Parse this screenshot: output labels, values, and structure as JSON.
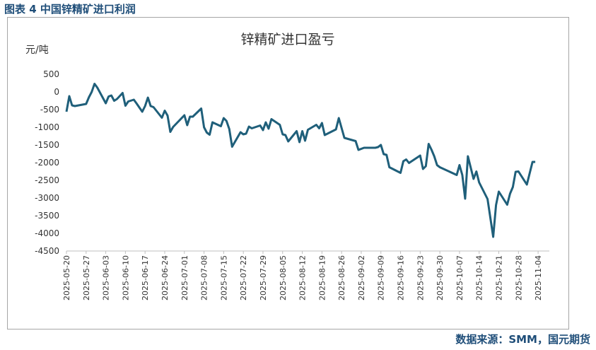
{
  "caption": "图表 4 中国锌精矿进口利润",
  "source": "数据来源：SMM，国元期货",
  "chart_data": {
    "type": "line",
    "title": "锌精矿进口盈亏",
    "ylabel": "元/吨",
    "ylim": [
      -4500,
      500
    ],
    "yticks": [
      500,
      0,
      -500,
      -1000,
      -1500,
      -2000,
      -2500,
      -3000,
      -3500,
      -4000,
      -4500
    ],
    "xticks": [
      "2025-05-20",
      "2025-05-27",
      "2025-06-03",
      "2025-06-10",
      "2025-06-17",
      "2025-06-24",
      "2025-07-01",
      "2025-07-08",
      "2025-07-15",
      "2025-07-22",
      "2025-07-29",
      "2025-08-05",
      "2025-08-12",
      "2025-08-19",
      "2025-08-26",
      "2025-09-02",
      "2025-09-09",
      "2025-09-16",
      "2025-09-23",
      "2025-09-30",
      "2025-10-07",
      "2025-10-14",
      "2025-10-21",
      "2025-10-28",
      "2025-11-04"
    ],
    "x_range_days": [
      0,
      172
    ],
    "series": [
      {
        "name": "锌精矿进口盈亏",
        "color": "#1f5f7a",
        "points": [
          [
            0,
            -560
          ],
          [
            1,
            -120
          ],
          [
            2,
            -380
          ],
          [
            3,
            -400
          ],
          [
            7,
            -340
          ],
          [
            8,
            -150
          ],
          [
            9,
            0
          ],
          [
            10,
            230
          ],
          [
            11,
            120
          ],
          [
            14,
            -320
          ],
          [
            15,
            -130
          ],
          [
            16,
            -100
          ],
          [
            17,
            -250
          ],
          [
            18,
            -200
          ],
          [
            20,
            -30
          ],
          [
            21,
            -390
          ],
          [
            22,
            -270
          ],
          [
            24,
            -220
          ],
          [
            25,
            -330
          ],
          [
            27,
            -560
          ],
          [
            28,
            -400
          ],
          [
            29,
            -160
          ],
          [
            30,
            -400
          ],
          [
            31,
            -430
          ],
          [
            34,
            -730
          ],
          [
            35,
            -530
          ],
          [
            36,
            -670
          ],
          [
            37,
            -1130
          ],
          [
            38,
            -990
          ],
          [
            42,
            -660
          ],
          [
            43,
            -940
          ],
          [
            44,
            -700
          ],
          [
            45,
            -700
          ],
          [
            48,
            -470
          ],
          [
            49,
            -1000
          ],
          [
            50,
            -1150
          ],
          [
            51,
            -1210
          ],
          [
            52,
            -860
          ],
          [
            55,
            -970
          ],
          [
            56,
            -740
          ],
          [
            57,
            -820
          ],
          [
            58,
            -1050
          ],
          [
            59,
            -1550
          ],
          [
            62,
            -1140
          ],
          [
            63,
            -1200
          ],
          [
            64,
            -1180
          ],
          [
            65,
            -980
          ],
          [
            66,
            -1030
          ],
          [
            69,
            -950
          ],
          [
            70,
            -1080
          ],
          [
            71,
            -860
          ],
          [
            72,
            -1040
          ],
          [
            73,
            -770
          ],
          [
            76,
            -930
          ],
          [
            77,
            -1200
          ],
          [
            78,
            -1220
          ],
          [
            79,
            -1400
          ],
          [
            82,
            -1110
          ],
          [
            83,
            -1420
          ],
          [
            84,
            -1110
          ],
          [
            85,
            -1380
          ],
          [
            86,
            -1070
          ],
          [
            89,
            -930
          ],
          [
            90,
            -1030
          ],
          [
            91,
            -880
          ],
          [
            92,
            -1220
          ],
          [
            96,
            -1060
          ],
          [
            97,
            -740
          ],
          [
            99,
            -1300
          ],
          [
            103,
            -1390
          ],
          [
            104,
            -1640
          ],
          [
            106,
            -1580
          ],
          [
            110,
            -1580
          ],
          [
            111,
            -1560
          ],
          [
            112,
            -1500
          ],
          [
            113,
            -1760
          ],
          [
            114,
            -1780
          ],
          [
            115,
            -2130
          ],
          [
            119,
            -2290
          ],
          [
            120,
            -1960
          ],
          [
            121,
            -1910
          ],
          [
            122,
            -2010
          ],
          [
            126,
            -1800
          ],
          [
            127,
            -2180
          ],
          [
            128,
            -2100
          ],
          [
            129,
            -1470
          ],
          [
            130,
            -1630
          ],
          [
            131,
            -1820
          ],
          [
            132,
            -2070
          ],
          [
            133,
            -2130
          ],
          [
            139,
            -2350
          ],
          [
            140,
            -2070
          ],
          [
            141,
            -2350
          ],
          [
            142,
            -3020
          ],
          [
            143,
            -1820
          ],
          [
            145,
            -2460
          ],
          [
            146,
            -2250
          ],
          [
            147,
            -2560
          ],
          [
            150,
            -3030
          ],
          [
            152,
            -4100
          ],
          [
            153,
            -3200
          ],
          [
            154,
            -2820
          ],
          [
            157,
            -3190
          ],
          [
            158,
            -2880
          ],
          [
            159,
            -2690
          ],
          [
            160,
            -2260
          ],
          [
            161,
            -2250
          ],
          [
            164,
            -2620
          ],
          [
            166,
            -1980
          ],
          [
            167,
            -1980
          ]
        ]
      }
    ]
  }
}
